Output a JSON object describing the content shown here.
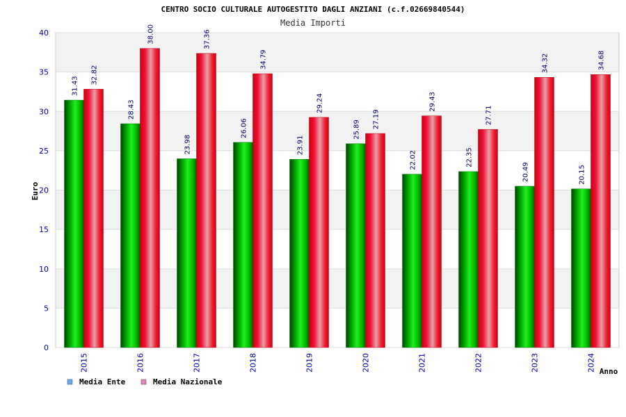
{
  "chart_data": {
    "type": "bar",
    "title": "CENTRO SOCIO CULTURALE AUTOGESTITO DAGLI ANZIANI (c.f.02669840544)",
    "subtitle": "Media Importi",
    "xlabel": "Anno",
    "ylabel": "Euro",
    "ylim": [
      0,
      40
    ],
    "yticks": [
      "0",
      "5",
      "10",
      "15",
      "20",
      "25",
      "30",
      "35",
      "40"
    ],
    "grid": "horizontal",
    "legend_position": "bottom-left",
    "categories": [
      "2015",
      "2016",
      "2017",
      "2018",
      "2019",
      "2020",
      "2021",
      "2022",
      "2023",
      "2024"
    ],
    "series": [
      {
        "name": "Media Ente",
        "color": "#00aa00",
        "legend_color": "#66aaee",
        "values": [
          31.43,
          28.43,
          23.98,
          26.06,
          23.91,
          25.89,
          22.02,
          22.35,
          20.49,
          20.15
        ],
        "labels": [
          "31.43",
          "28.43",
          "23.98",
          "26.06",
          "23.91",
          "25.89",
          "22.02",
          "22.35",
          "20.49",
          "20.15"
        ]
      },
      {
        "name": "Media Nazionale",
        "color": "#ee0022",
        "legend_color": "#dd88bb",
        "values": [
          32.82,
          38.0,
          37.36,
          34.79,
          29.24,
          27.19,
          29.43,
          27.71,
          34.32,
          34.68
        ],
        "labels": [
          "32.82",
          "38.00",
          "37.36",
          "34.79",
          "29.24",
          "27.19",
          "29.43",
          "27.71",
          "34.32",
          "34.68"
        ]
      }
    ]
  }
}
